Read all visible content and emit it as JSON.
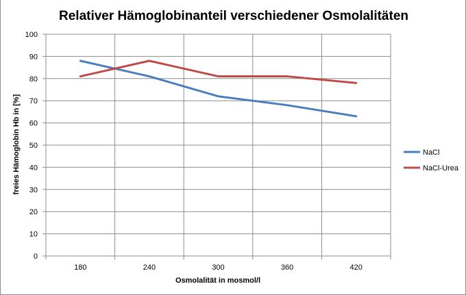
{
  "chart_data": {
    "type": "line",
    "title": "Relativer Hämoglobinanteil verschiedener Osmolalitäten",
    "xlabel": "Osmolalität  in mosmol/l",
    "ylabel": "freies Hämoglobin  Hb in [%]",
    "categories": [
      "180",
      "240",
      "300",
      "360",
      "420"
    ],
    "ylim": [
      0,
      100
    ],
    "yticks": [
      "0",
      "10",
      "20",
      "30",
      "40",
      "50",
      "60",
      "70",
      "80",
      "90",
      "100"
    ],
    "grid": true,
    "legend_position": "right",
    "series": [
      {
        "name": "NaCl",
        "color": "#4a7ebb",
        "values": [
          88,
          81,
          72,
          68,
          63
        ]
      },
      {
        "name": "NaCl-Urea",
        "color": "#be4b48",
        "values": [
          81,
          88,
          81,
          81,
          78
        ]
      }
    ]
  }
}
